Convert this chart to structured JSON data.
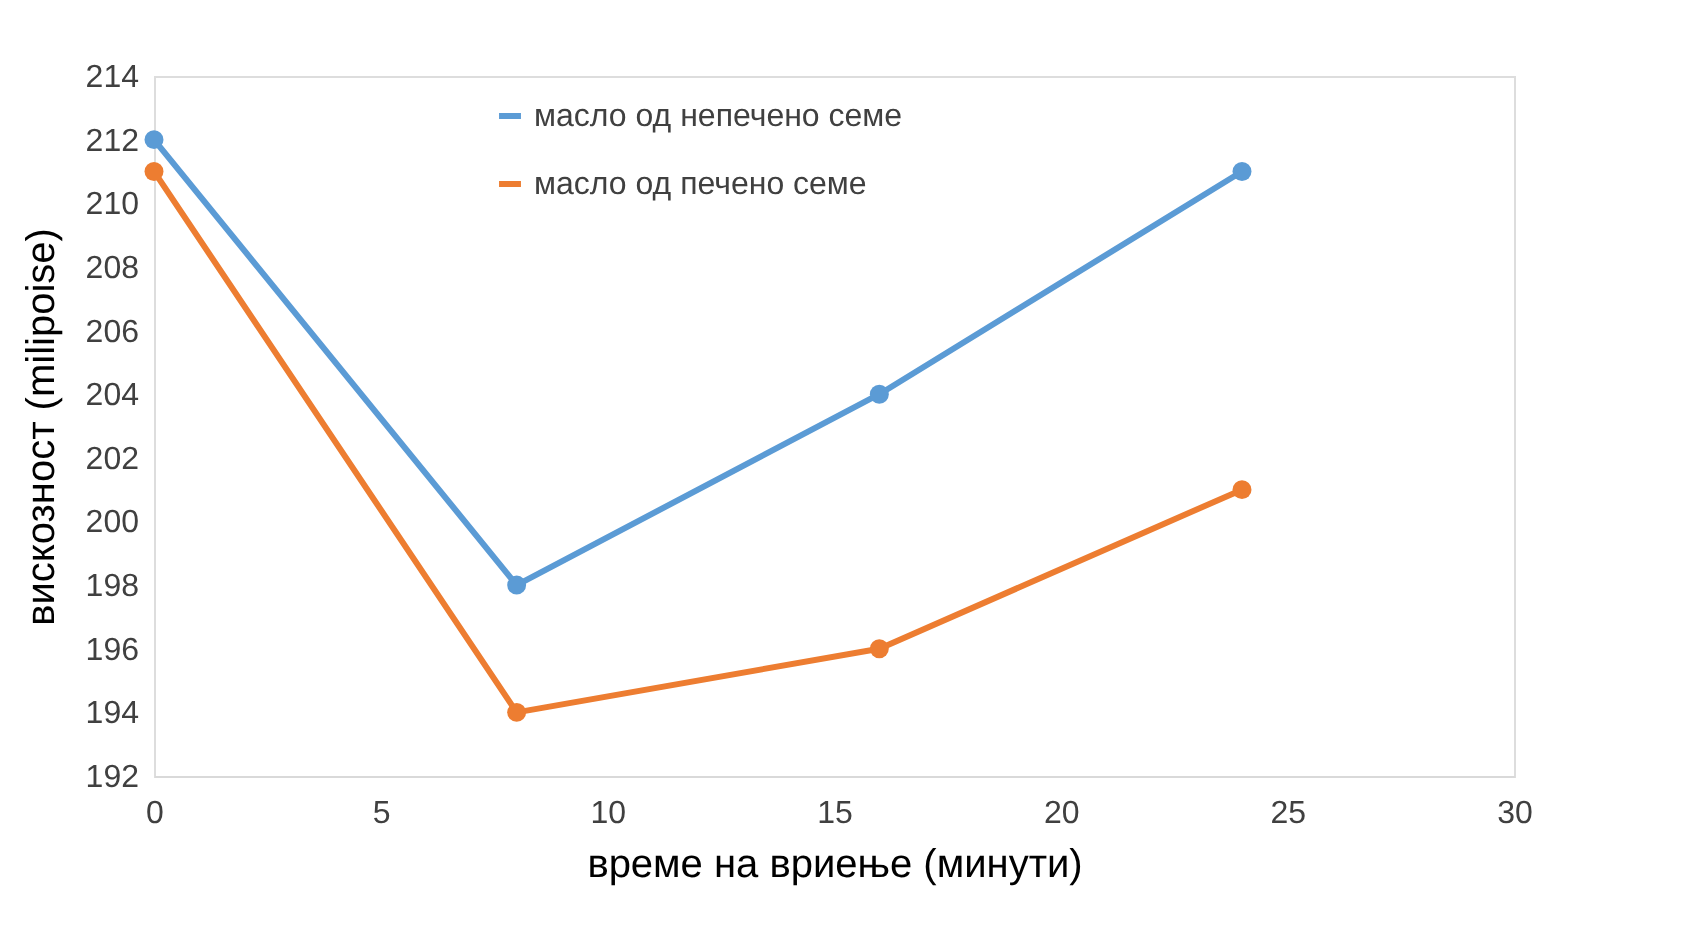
{
  "chart_data": {
    "type": "line",
    "xlabel": "време на вриење (минути)",
    "ylabel": "вискозност (milipoise)",
    "x": [
      0,
      8,
      16,
      24
    ],
    "series": [
      {
        "name": "масло од непечено семе",
        "color": "#5b9bd5",
        "values": [
          212,
          198,
          204,
          211
        ]
      },
      {
        "name": "масло од печено семе",
        "color": "#ed7d31",
        "values": [
          211,
          194,
          196,
          201
        ]
      }
    ],
    "xlim": [
      0,
      30
    ],
    "xticks": [
      0,
      5,
      10,
      15,
      20,
      25,
      30
    ],
    "ylim": [
      192,
      214
    ],
    "yticks": [
      192,
      194,
      196,
      198,
      200,
      202,
      204,
      206,
      208,
      210,
      212,
      214
    ],
    "grid": false,
    "legend": "top",
    "marker": "circle",
    "line_style": "solid"
  }
}
